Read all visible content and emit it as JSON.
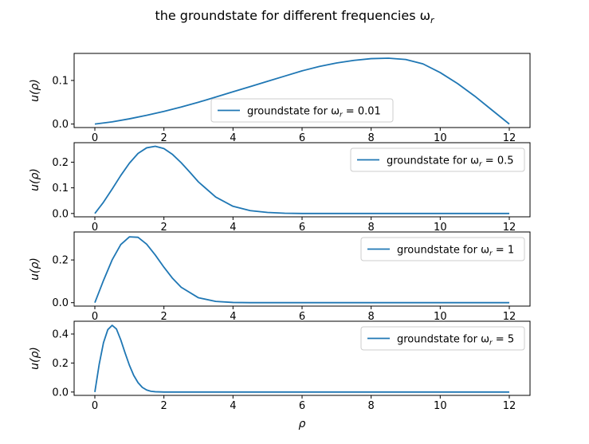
{
  "figure": {
    "suptitle": "the groundstate for different frequencies ω",
    "suptitle_sub": "r",
    "xlabel": "ρ",
    "ylabel": "u(ρ)"
  },
  "colors": {
    "line": "#1f77b4",
    "axis": "#000000",
    "legend_border": "#cccccc"
  },
  "chart_data": [
    {
      "type": "line",
      "legend_text": "groundstate for ω",
      "legend_sub": "r",
      "legend_value": "= 0.01",
      "legend_position": "lower-center",
      "xlim": [
        -0.6,
        12.6
      ],
      "ylim": [
        -0.008,
        0.162
      ],
      "xticks": [
        0,
        2,
        4,
        6,
        8,
        10,
        12
      ],
      "yticks": [
        0.0,
        0.1
      ],
      "ytick_labels": [
        "0.0",
        "0.1"
      ],
      "x": [
        0,
        0.5,
        1,
        1.5,
        2,
        2.5,
        3,
        3.5,
        4,
        4.5,
        5,
        5.5,
        6,
        6.5,
        7,
        7.5,
        8,
        8.5,
        9,
        9.5,
        10,
        10.5,
        11,
        11.5,
        12
      ],
      "values": [
        0.0,
        0.005,
        0.012,
        0.02,
        0.029,
        0.039,
        0.05,
        0.062,
        0.074,
        0.086,
        0.098,
        0.11,
        0.122,
        0.132,
        0.14,
        0.146,
        0.15,
        0.151,
        0.148,
        0.138,
        0.118,
        0.093,
        0.064,
        0.032,
        0.0
      ]
    },
    {
      "type": "line",
      "legend_text": "groundstate for ω",
      "legend_sub": "r",
      "legend_value": "= 0.5",
      "legend_position": "upper-right",
      "xlim": [
        -0.6,
        12.6
      ],
      "ylim": [
        -0.013,
        0.276
      ],
      "xticks": [
        0,
        2,
        4,
        6,
        8,
        10,
        12
      ],
      "yticks": [
        0.0,
        0.1,
        0.2
      ],
      "ytick_labels": [
        "0.0",
        "0.1",
        "0.2"
      ],
      "x": [
        0,
        0.25,
        0.5,
        0.75,
        1,
        1.25,
        1.5,
        1.75,
        2,
        2.25,
        2.5,
        2.75,
        3,
        3.5,
        4,
        4.5,
        5,
        5.5,
        6,
        7,
        8,
        9,
        10,
        11,
        12
      ],
      "values": [
        0.0,
        0.044,
        0.095,
        0.148,
        0.196,
        0.234,
        0.256,
        0.262,
        0.253,
        0.23,
        0.198,
        0.161,
        0.123,
        0.064,
        0.028,
        0.011,
        0.004,
        0.001,
        0.0,
        0.0,
        0.0,
        0.0,
        0.0,
        0.0,
        0.0
      ]
    },
    {
      "type": "line",
      "legend_text": "groundstate for ω",
      "legend_sub": "r",
      "legend_value": "= 1",
      "legend_position": "upper-right",
      "xlim": [
        -0.6,
        12.6
      ],
      "ylim": [
        -0.016,
        0.331
      ],
      "xticks": [
        0,
        2,
        4,
        6,
        8,
        10,
        12
      ],
      "yticks": [
        0.0,
        0.2
      ],
      "ytick_labels": [
        "0.0",
        "0.2"
      ],
      "x": [
        0,
        0.25,
        0.5,
        0.75,
        1,
        1.25,
        1.5,
        1.75,
        2,
        2.25,
        2.5,
        3,
        3.5,
        4,
        4.5,
        5,
        6,
        7,
        8,
        9,
        10,
        11,
        12
      ],
      "values": [
        0.0,
        0.104,
        0.2,
        0.272,
        0.308,
        0.306,
        0.274,
        0.223,
        0.166,
        0.114,
        0.072,
        0.023,
        0.006,
        0.001,
        0.0,
        0.0,
        0.0,
        0.0,
        0.0,
        0.0,
        0.0,
        0.0,
        0.0
      ]
    },
    {
      "type": "line",
      "legend_text": "groundstate for ω",
      "legend_sub": "r",
      "legend_value": "= 5",
      "legend_position": "upper-right",
      "xlim": [
        -0.6,
        12.6
      ],
      "ylim": [
        -0.023,
        0.488
      ],
      "xticks": [
        0,
        2,
        4,
        6,
        8,
        10,
        12
      ],
      "yticks": [
        0.0,
        0.2,
        0.4
      ],
      "ytick_labels": [
        "0.0",
        "0.2",
        "0.4"
      ],
      "x": [
        0,
        0.125,
        0.25,
        0.375,
        0.5,
        0.625,
        0.75,
        0.875,
        1,
        1.125,
        1.25,
        1.375,
        1.5,
        1.625,
        1.75,
        2,
        2.5,
        3,
        4,
        6,
        8,
        10,
        12
      ],
      "values": [
        0.0,
        0.19,
        0.34,
        0.43,
        0.46,
        0.435,
        0.36,
        0.27,
        0.185,
        0.115,
        0.065,
        0.032,
        0.014,
        0.005,
        0.002,
        0.0,
        0.0,
        0.0,
        0.0,
        0.0,
        0.0,
        0.0,
        0.0
      ]
    }
  ]
}
